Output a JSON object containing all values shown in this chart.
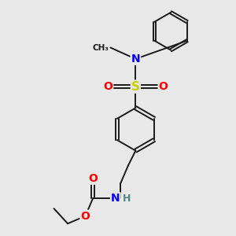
{
  "background_color": "#e8e8e8",
  "bond_color": "#1a1a1a",
  "colors": {
    "N": "#0000ff",
    "O": "#ff0000",
    "S": "#cccc00",
    "H": "#4a8a8a",
    "C": "#1a1a1a"
  },
  "figsize": [
    3.0,
    3.0
  ],
  "dpi": 100
}
